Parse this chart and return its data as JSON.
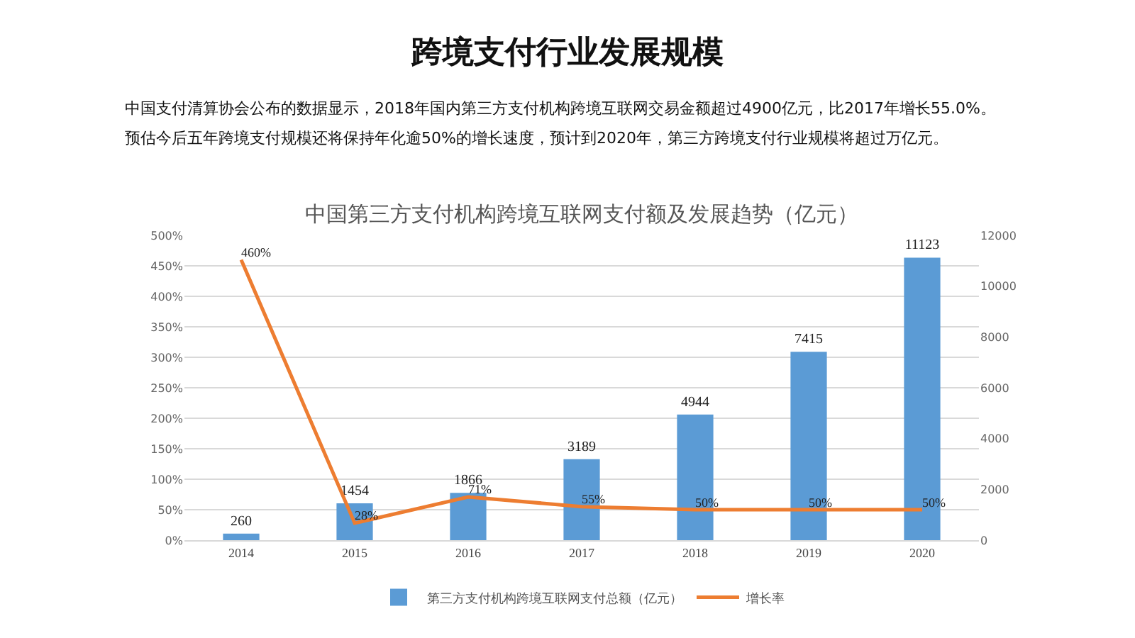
{
  "chart_data": {
    "type": "bar",
    "title": "跨境支付行业发展规模",
    "subtitle": "中国支付清算协会公布的数据显示，2018年国内第三方支付机构跨境互联网交易金额超过4900亿元，比2017年增长55.0%。预估今后五年跨境支付规模还将保持年化逾50%的增长速度，预计到2020年，第三方跨境支付行业规模将超过万亿元。",
    "annotations": [
      "中国第三方支付机构跨境互联网支付额及发展趋势（亿元）"
    ],
    "categories": [
      "2014",
      "2015",
      "2016",
      "2017",
      "2018",
      "2019",
      "2020"
    ],
    "series": [
      {
        "name": "第三方支付机构跨境互联网支付总额（亿元）",
        "axis": "y2",
        "color": "#5b9bd5",
        "values": [
          260,
          1454,
          1866,
          3189,
          4944,
          7415,
          11123
        ],
        "value_labels": [
          "260",
          "1454",
          "1866",
          "3189",
          "4944",
          "7415",
          "11123"
        ]
      },
      {
        "name": "增长率",
        "type": "line",
        "axis": "y",
        "color": "#ed7d31",
        "values": [
          460,
          28,
          71,
          55,
          50,
          50,
          50
        ],
        "value_labels": [
          "460%",
          "28%",
          "71%",
          "55%",
          "50%",
          "50%",
          "50%"
        ]
      }
    ],
    "ylim": [
      0,
      500
    ],
    "yticks": [
      {
        "value": 0,
        "label": "0%"
      },
      {
        "value": 50,
        "label": "50%"
      },
      {
        "value": 100,
        "label": "100%"
      },
      {
        "value": 150,
        "label": "150%"
      },
      {
        "value": 200,
        "label": "200%"
      },
      {
        "value": 250,
        "label": "250%"
      },
      {
        "value": 300,
        "label": "300%"
      },
      {
        "value": 350,
        "label": "350%"
      },
      {
        "value": 400,
        "label": "400%"
      },
      {
        "value": 450,
        "label": "450%"
      },
      {
        "value": 500,
        "label": "500%"
      }
    ],
    "y2lim": [
      0,
      12000
    ],
    "y2ticks": [
      0,
      2000,
      4000,
      6000,
      8000,
      10000,
      12000
    ],
    "grid": "y",
    "legend": "bottom"
  }
}
